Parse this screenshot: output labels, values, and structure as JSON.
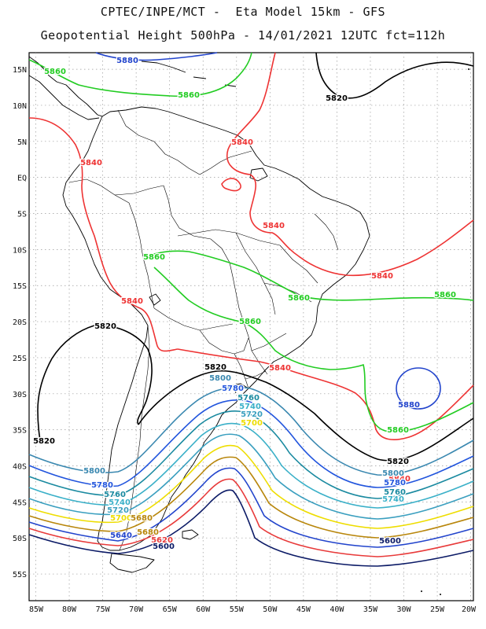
{
  "header": {
    "title_line1": "CPTEC/INPE/MCT -  Eta Model 15km - GFS",
    "title_line2": "Geopotential Height 500hPa - 14/01/2021 12UTC fct=112h"
  },
  "axes": {
    "lat_labels": [
      "15N",
      "10N",
      "5N",
      "EQ",
      "5S",
      "10S",
      "15S",
      "20S",
      "25S",
      "30S",
      "35S",
      "40S",
      "45S",
      "50S",
      "55S"
    ],
    "lon_labels": [
      "85W",
      "80W",
      "75W",
      "70W",
      "65W",
      "60W",
      "55W",
      "50W",
      "45W",
      "40W",
      "35W",
      "30W",
      "25W",
      "20W"
    ]
  },
  "colors": {
    "c5600": "#0b1a66",
    "c5620": "#e83a3a",
    "c5640": "#2244cc",
    "c5660": "#3a78d8",
    "c5680": "#b8860b",
    "c5700": "#eedd00",
    "c5720": "#3a9fbf",
    "c5740": "#3ab0c8",
    "c5760": "#1a8aa0",
    "c5780": "#2255dd",
    "c5800": "#3a88b0",
    "c5820": "#000000",
    "c5840": "#ee3333",
    "c5860": "#22cc22",
    "c5880": "#2244cc",
    "coast": "#000000",
    "grid": "#999999"
  },
  "contour_labels": [
    {
      "text": "5880",
      "color": "c5880"
    },
    {
      "text": "5860",
      "color": "c5860"
    },
    {
      "text": "5860",
      "color": "c5860"
    },
    {
      "text": "5820",
      "color": "c5820"
    },
    {
      "text": "5840",
      "color": "c5840"
    },
    {
      "text": "5840",
      "color": "c5840"
    },
    {
      "text": "5840",
      "color": "c5840"
    },
    {
      "text": "5860",
      "color": "c5860"
    },
    {
      "text": "5840",
      "color": "c5840"
    },
    {
      "text": "5860",
      "color": "c5860"
    },
    {
      "text": "5860",
      "color": "c5860"
    },
    {
      "text": "5840",
      "color": "c5840"
    },
    {
      "text": "5860",
      "color": "c5860"
    },
    {
      "text": "5820",
      "color": "c5820"
    },
    {
      "text": "5820",
      "color": "c5820"
    },
    {
      "text": "5840",
      "color": "c5840"
    },
    {
      "text": "5800",
      "color": "c5800"
    },
    {
      "text": "5780",
      "color": "c5780"
    },
    {
      "text": "5760",
      "color": "c5760"
    },
    {
      "text": "5740",
      "color": "c5740"
    },
    {
      "text": "5720",
      "color": "c5720"
    },
    {
      "text": "5700",
      "color": "c5700"
    },
    {
      "text": "5680",
      "color": "c5680"
    },
    {
      "text": "5880",
      "color": "c5880"
    },
    {
      "text": "5860",
      "color": "c5860"
    },
    {
      "text": "5820",
      "color": "c5820"
    },
    {
      "text": "5840",
      "color": "c5840"
    },
    {
      "text": "5800",
      "color": "c5800"
    },
    {
      "text": "5780",
      "color": "c5780"
    },
    {
      "text": "5760",
      "color": "c5760"
    },
    {
      "text": "5740",
      "color": "c5740"
    },
    {
      "text": "5820",
      "color": "c5820"
    },
    {
      "text": "5800",
      "color": "c5800"
    },
    {
      "text": "5780",
      "color": "c5780"
    },
    {
      "text": "5760",
      "color": "c5760"
    },
    {
      "text": "5740",
      "color": "c5740"
    },
    {
      "text": "5720",
      "color": "c5720"
    },
    {
      "text": "5700",
      "color": "c5700"
    },
    {
      "text": "5680",
      "color": "c5680"
    },
    {
      "text": "5640",
      "color": "c5640"
    },
    {
      "text": "5620",
      "color": "c5620"
    },
    {
      "text": "5600",
      "color": "c5600"
    },
    {
      "text": "5600",
      "color": "c5600"
    }
  ]
}
